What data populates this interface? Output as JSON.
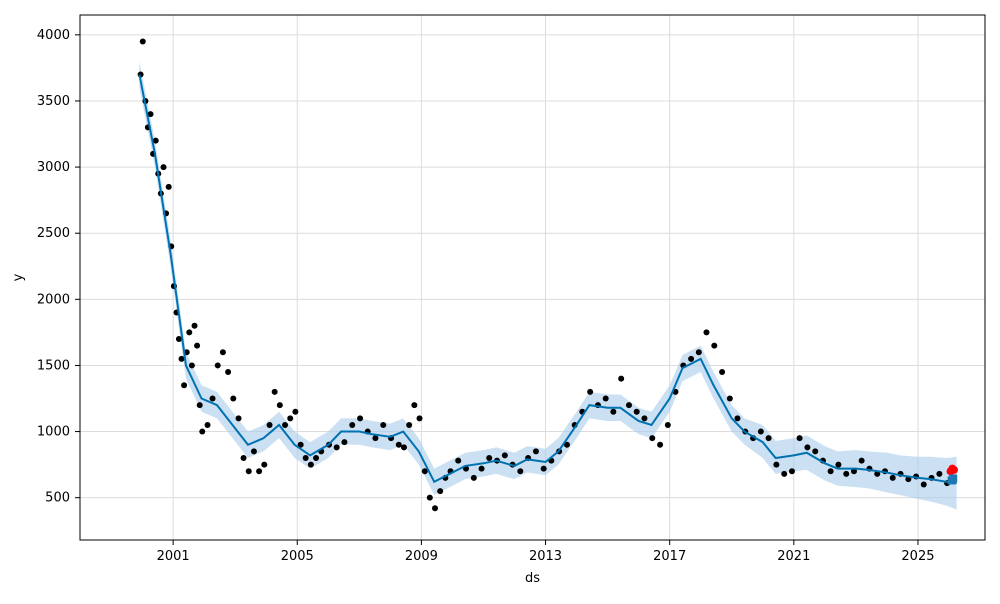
{
  "chart_data": {
    "type": "line",
    "xlabel": "ds",
    "ylabel": "y",
    "x_ticks": [
      "2001",
      "2005",
      "2009",
      "2013",
      "2017",
      "2021",
      "2025"
    ],
    "y_ticks": [
      500,
      1000,
      1500,
      2000,
      2500,
      3000,
      3500,
      4000
    ],
    "xlim": [
      "1998-01-01",
      "2027-03-01"
    ],
    "ylim": [
      180,
      4150
    ],
    "grid": true,
    "series": [
      {
        "role": "observed",
        "color": "#000000",
        "marker": "point",
        "points": [
          [
            "1999-12-15",
            3700
          ],
          [
            "2000-01-10",
            3950
          ],
          [
            "2000-02-10",
            3500
          ],
          [
            "2000-03-10",
            3300
          ],
          [
            "2000-04-10",
            3400
          ],
          [
            "2000-05-10",
            3100
          ],
          [
            "2000-06-10",
            3200
          ],
          [
            "2000-07-10",
            2950
          ],
          [
            "2000-08-10",
            2800
          ],
          [
            "2000-09-10",
            3000
          ],
          [
            "2000-10-10",
            2650
          ],
          [
            "2000-11-10",
            2850
          ],
          [
            "2000-12-10",
            2400
          ],
          [
            "2001-01-10",
            2100
          ],
          [
            "2001-02-10",
            1900
          ],
          [
            "2001-03-10",
            1700
          ],
          [
            "2001-04-10",
            1550
          ],
          [
            "2001-05-10",
            1350
          ],
          [
            "2001-06-10",
            1600
          ],
          [
            "2001-07-10",
            1750
          ],
          [
            "2001-08-10",
            1500
          ],
          [
            "2001-09-10",
            1800
          ],
          [
            "2001-10-10",
            1650
          ],
          [
            "2001-11-10",
            1200
          ],
          [
            "2001-12-10",
            1000
          ],
          [
            "2002-02-10",
            1050
          ],
          [
            "2002-04-10",
            1250
          ],
          [
            "2002-06-10",
            1500
          ],
          [
            "2002-08-10",
            1600
          ],
          [
            "2002-10-10",
            1450
          ],
          [
            "2002-12-10",
            1250
          ],
          [
            "2003-02-10",
            1100
          ],
          [
            "2003-04-10",
            800
          ],
          [
            "2003-06-10",
            700
          ],
          [
            "2003-08-10",
            850
          ],
          [
            "2003-10-10",
            700
          ],
          [
            "2003-12-10",
            750
          ],
          [
            "2004-02-10",
            1050
          ],
          [
            "2004-04-10",
            1300
          ],
          [
            "2004-06-10",
            1200
          ],
          [
            "2004-08-10",
            1050
          ],
          [
            "2004-10-10",
            1100
          ],
          [
            "2004-12-10",
            1150
          ],
          [
            "2005-02-10",
            900
          ],
          [
            "2005-04-10",
            800
          ],
          [
            "2005-06-10",
            750
          ],
          [
            "2005-08-10",
            800
          ],
          [
            "2005-10-10",
            850
          ],
          [
            "2006-01-10",
            900
          ],
          [
            "2006-04-10",
            880
          ],
          [
            "2006-07-10",
            920
          ],
          [
            "2006-10-10",
            1050
          ],
          [
            "2007-01-10",
            1100
          ],
          [
            "2007-04-10",
            1000
          ],
          [
            "2007-07-10",
            950
          ],
          [
            "2007-10-10",
            1050
          ],
          [
            "2008-01-10",
            950
          ],
          [
            "2008-04-10",
            900
          ],
          [
            "2008-06-10",
            880
          ],
          [
            "2008-08-10",
            1050
          ],
          [
            "2008-10-10",
            1200
          ],
          [
            "2008-12-10",
            1100
          ],
          [
            "2009-02-10",
            700
          ],
          [
            "2009-04-10",
            500
          ],
          [
            "2009-06-10",
            420
          ],
          [
            "2009-08-10",
            550
          ],
          [
            "2009-10-10",
            650
          ],
          [
            "2009-12-10",
            700
          ],
          [
            "2010-03-10",
            780
          ],
          [
            "2010-06-10",
            720
          ],
          [
            "2010-09-10",
            650
          ],
          [
            "2010-12-10",
            720
          ],
          [
            "2011-03-10",
            800
          ],
          [
            "2011-06-10",
            780
          ],
          [
            "2011-09-10",
            820
          ],
          [
            "2011-12-10",
            750
          ],
          [
            "2012-03-10",
            700
          ],
          [
            "2012-06-10",
            800
          ],
          [
            "2012-09-10",
            850
          ],
          [
            "2012-12-10",
            720
          ],
          [
            "2013-03-10",
            780
          ],
          [
            "2013-06-10",
            850
          ],
          [
            "2013-09-10",
            900
          ],
          [
            "2013-12-10",
            1050
          ],
          [
            "2014-03-10",
            1150
          ],
          [
            "2014-06-10",
            1300
          ],
          [
            "2014-09-10",
            1200
          ],
          [
            "2014-12-10",
            1250
          ],
          [
            "2015-03-10",
            1150
          ],
          [
            "2015-06-10",
            1400
          ],
          [
            "2015-09-10",
            1200
          ],
          [
            "2015-12-10",
            1150
          ],
          [
            "2016-03-10",
            1100
          ],
          [
            "2016-06-10",
            950
          ],
          [
            "2016-09-10",
            900
          ],
          [
            "2016-12-10",
            1050
          ],
          [
            "2017-03-10",
            1300
          ],
          [
            "2017-06-10",
            1500
          ],
          [
            "2017-09-10",
            1550
          ],
          [
            "2017-12-10",
            1600
          ],
          [
            "2018-03-10",
            1750
          ],
          [
            "2018-06-10",
            1650
          ],
          [
            "2018-09-10",
            1450
          ],
          [
            "2018-12-10",
            1250
          ],
          [
            "2019-03-10",
            1100
          ],
          [
            "2019-06-10",
            1000
          ],
          [
            "2019-09-10",
            950
          ],
          [
            "2019-12-10",
            1000
          ],
          [
            "2020-03-10",
            950
          ],
          [
            "2020-06-10",
            750
          ],
          [
            "2020-09-10",
            680
          ],
          [
            "2020-12-10",
            700
          ],
          [
            "2021-03-10",
            950
          ],
          [
            "2021-06-10",
            880
          ],
          [
            "2021-09-10",
            850
          ],
          [
            "2021-12-10",
            780
          ],
          [
            "2022-03-10",
            700
          ],
          [
            "2022-06-10",
            750
          ],
          [
            "2022-09-10",
            680
          ],
          [
            "2022-12-10",
            700
          ],
          [
            "2023-03-10",
            780
          ],
          [
            "2023-06-10",
            720
          ],
          [
            "2023-09-10",
            680
          ],
          [
            "2023-12-10",
            700
          ],
          [
            "2024-03-10",
            650
          ],
          [
            "2024-06-10",
            680
          ],
          [
            "2024-09-10",
            640
          ],
          [
            "2024-12-10",
            660
          ],
          [
            "2025-03-10",
            600
          ],
          [
            "2025-06-10",
            650
          ],
          [
            "2025-09-10",
            680
          ],
          [
            "2025-12-10",
            610
          ]
        ]
      },
      {
        "role": "forecast",
        "color": "#0072B2",
        "band_color": "#A8CDEB",
        "points": [
          [
            "1999-12-01",
            3700,
            3600,
            3800
          ],
          [
            "2000-06-01",
            3100,
            3000,
            3200
          ],
          [
            "2000-12-01",
            2350,
            2250,
            2450
          ],
          [
            "2001-06-01",
            1500,
            1400,
            1600
          ],
          [
            "2001-12-01",
            1250,
            1150,
            1350
          ],
          [
            "2002-06-01",
            1200,
            1100,
            1300
          ],
          [
            "2002-12-01",
            1050,
            950,
            1150
          ],
          [
            "2003-06-01",
            900,
            800,
            1000
          ],
          [
            "2003-12-01",
            950,
            850,
            1050
          ],
          [
            "2004-06-01",
            1050,
            950,
            1150
          ],
          [
            "2004-12-01",
            900,
            800,
            1000
          ],
          [
            "2005-06-01",
            820,
            720,
            920
          ],
          [
            "2006-01-01",
            900,
            800,
            1000
          ],
          [
            "2006-06-01",
            1000,
            900,
            1100
          ],
          [
            "2007-01-01",
            1000,
            900,
            1100
          ],
          [
            "2007-06-01",
            980,
            880,
            1080
          ],
          [
            "2008-01-01",
            960,
            860,
            1060
          ],
          [
            "2008-06-01",
            1000,
            900,
            1100
          ],
          [
            "2008-12-01",
            850,
            750,
            950
          ],
          [
            "2009-06-01",
            620,
            520,
            720
          ],
          [
            "2009-12-01",
            680,
            580,
            780
          ],
          [
            "2010-06-01",
            740,
            640,
            840
          ],
          [
            "2011-01-01",
            760,
            660,
            860
          ],
          [
            "2011-06-01",
            780,
            680,
            880
          ],
          [
            "2012-01-01",
            740,
            640,
            840
          ],
          [
            "2012-06-01",
            790,
            690,
            890
          ],
          [
            "2013-01-01",
            770,
            670,
            870
          ],
          [
            "2013-06-01",
            850,
            750,
            950
          ],
          [
            "2014-01-01",
            1050,
            950,
            1150
          ],
          [
            "2014-06-01",
            1200,
            1100,
            1300
          ],
          [
            "2015-01-01",
            1180,
            1080,
            1280
          ],
          [
            "2015-06-01",
            1180,
            1080,
            1280
          ],
          [
            "2016-01-01",
            1080,
            980,
            1180
          ],
          [
            "2016-06-01",
            1050,
            950,
            1150
          ],
          [
            "2017-01-01",
            1250,
            1150,
            1350
          ],
          [
            "2017-06-01",
            1480,
            1380,
            1580
          ],
          [
            "2018-01-01",
            1550,
            1450,
            1650
          ],
          [
            "2018-06-01",
            1350,
            1250,
            1450
          ],
          [
            "2019-01-01",
            1100,
            1000,
            1200
          ],
          [
            "2019-06-01",
            1000,
            900,
            1100
          ],
          [
            "2020-01-01",
            920,
            800,
            1050
          ],
          [
            "2020-06-01",
            800,
            680,
            930
          ],
          [
            "2021-01-01",
            820,
            700,
            950
          ],
          [
            "2021-06-01",
            840,
            710,
            970
          ],
          [
            "2022-01-01",
            760,
            630,
            890
          ],
          [
            "2022-06-01",
            720,
            590,
            850
          ],
          [
            "2023-01-01",
            720,
            580,
            860
          ],
          [
            "2023-06-01",
            710,
            570,
            850
          ],
          [
            "2024-01-01",
            690,
            540,
            840
          ],
          [
            "2024-06-01",
            670,
            520,
            820
          ],
          [
            "2025-01-01",
            650,
            490,
            810
          ],
          [
            "2025-06-01",
            640,
            470,
            810
          ],
          [
            "2025-12-01",
            620,
            440,
            800
          ],
          [
            "2026-04-01",
            610,
            410,
            810
          ]
        ]
      },
      {
        "role": "highlight",
        "color": "#FF0000",
        "points": [
          [
            "2026-01-20",
            700
          ],
          [
            "2026-02-10",
            720
          ],
          [
            "2026-03-01",
            710
          ]
        ]
      },
      {
        "role": "forecast-end",
        "color": "#1F77B4",
        "points": [
          [
            "2026-02-01",
            630
          ],
          [
            "2026-02-20",
            645
          ]
        ]
      }
    ]
  }
}
